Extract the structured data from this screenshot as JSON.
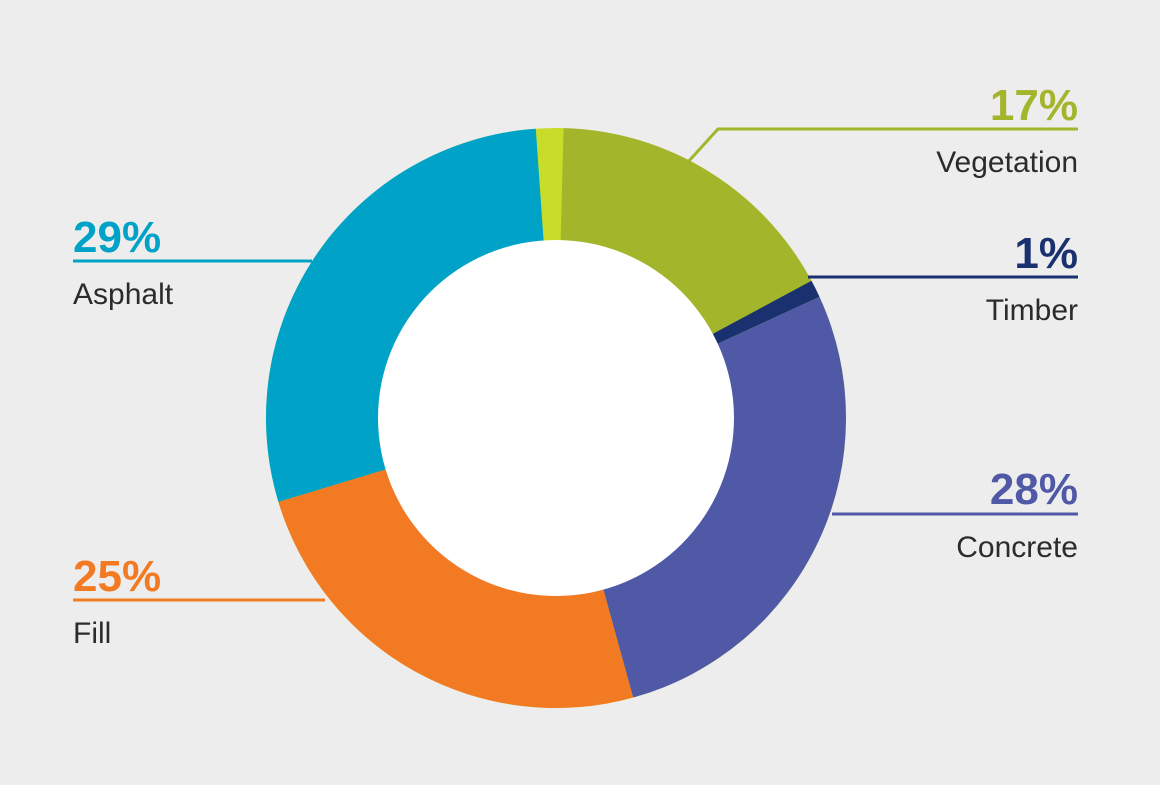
{
  "chart_data": {
    "type": "pie",
    "categories": [
      "Vegetation",
      "Timber",
      "Concrete",
      "Fill",
      "Asphalt"
    ],
    "values": [
      17,
      1,
      28,
      25,
      29
    ],
    "value_labels": [
      "17%",
      "1%",
      "28%",
      "25%",
      "29%"
    ],
    "colors": [
      "#a3b52a",
      "#1a3170",
      "#5059a6",
      "#f27a22",
      "#00a3c7"
    ],
    "gap_color": "#c8dc2a",
    "donut": true,
    "title": "",
    "legend": "callout-labels"
  }
}
